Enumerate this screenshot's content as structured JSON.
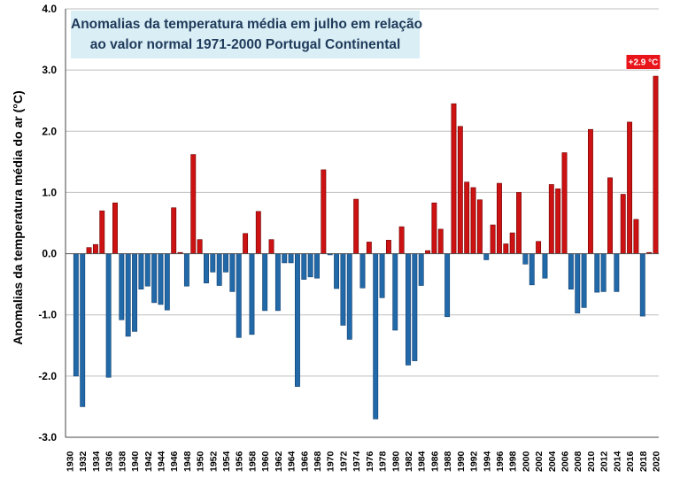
{
  "chart_data": {
    "type": "bar",
    "title_lines": [
      "Anomalias da temperatura média em julho em relação",
      "ao valor normal 1971-2000 Portugal Continental"
    ],
    "ylabel": "Anomalias da temperatura média do ar (°C)",
    "xlabel": "",
    "ylim": [
      -3.0,
      4.0
    ],
    "y_ticks": [
      "4.0",
      "3.0",
      "2.0",
      "1.0",
      "0.0",
      "-1.0",
      "-2.0",
      "-3.0"
    ],
    "grid": true,
    "x_tick_labels": [
      "1930",
      "1932",
      "1934",
      "1936",
      "1938",
      "1940",
      "1942",
      "1944",
      "1946",
      "1948",
      "1950",
      "1952",
      "1954",
      "1956",
      "1958",
      "1960",
      "1962",
      "1964",
      "1966",
      "1968",
      "1970",
      "1972",
      "1974",
      "1976",
      "1978",
      "1980",
      "1982",
      "1984",
      "1986",
      "1988",
      "1990",
      "1992",
      "1994",
      "1996",
      "1998",
      "2000",
      "2002",
      "2004",
      "2006",
      "2008",
      "2010",
      "2012",
      "2014",
      "2016",
      "2018",
      "2020"
    ],
    "years": [
      1931,
      1932,
      1933,
      1934,
      1935,
      1936,
      1937,
      1938,
      1939,
      1940,
      1941,
      1942,
      1943,
      1944,
      1945,
      1946,
      1947,
      1948,
      1949,
      1950,
      1951,
      1952,
      1953,
      1954,
      1955,
      1956,
      1957,
      1958,
      1959,
      1960,
      1961,
      1962,
      1963,
      1964,
      1965,
      1966,
      1967,
      1968,
      1969,
      1970,
      1971,
      1972,
      1973,
      1974,
      1975,
      1976,
      1977,
      1978,
      1979,
      1980,
      1981,
      1982,
      1983,
      1984,
      1985,
      1986,
      1987,
      1988,
      1989,
      1990,
      1991,
      1992,
      1993,
      1994,
      1995,
      1996,
      1997,
      1998,
      1999,
      2000,
      2001,
      2002,
      2003,
      2004,
      2005,
      2006,
      2007,
      2008,
      2009,
      2010,
      2011,
      2012,
      2013,
      2014,
      2015,
      2016,
      2017,
      2018,
      2019,
      2020
    ],
    "values": [
      -2.0,
      -2.5,
      0.1,
      0.15,
      0.7,
      -2.02,
      0.83,
      -1.08,
      -1.35,
      -1.27,
      -0.58,
      -0.53,
      -0.8,
      -0.83,
      -0.92,
      0.75,
      0.02,
      -0.53,
      1.62,
      0.23,
      -0.48,
      -0.3,
      -0.52,
      -0.3,
      -0.62,
      -1.37,
      0.33,
      -1.32,
      0.69,
      -0.93,
      0.23,
      -0.93,
      -0.15,
      -0.15,
      -2.17,
      -0.42,
      -0.38,
      -0.4,
      1.37,
      -0.02,
      -0.57,
      -1.17,
      -1.4,
      0.89,
      -0.56,
      0.19,
      -2.7,
      -0.72,
      0.22,
      -1.25,
      0.44,
      -1.82,
      -1.75,
      -0.52,
      0.05,
      0.83,
      0.4,
      -1.03,
      2.45,
      2.08,
      1.17,
      1.08,
      0.88,
      -0.1,
      0.47,
      1.15,
      0.16,
      0.34,
      1.0,
      -0.17,
      -0.51,
      0.2,
      -0.4,
      1.13,
      1.06,
      1.65,
      -0.58,
      -0.97,
      -0.88,
      2.03,
      -0.63,
      -0.62,
      1.24,
      -0.62,
      0.97,
      2.15,
      0.56,
      -1.02,
      0.02,
      2.9
    ],
    "annotation": "+2.9 °C",
    "colors": {
      "positive": "#cc1212",
      "negative": "#2169a8",
      "positive_edge": "#6e0000",
      "negative_edge": "#123f6e",
      "grid": "#bfbfbf",
      "plot_bg": "#ffffff",
      "annotation_bg": "#e8141a"
    }
  }
}
